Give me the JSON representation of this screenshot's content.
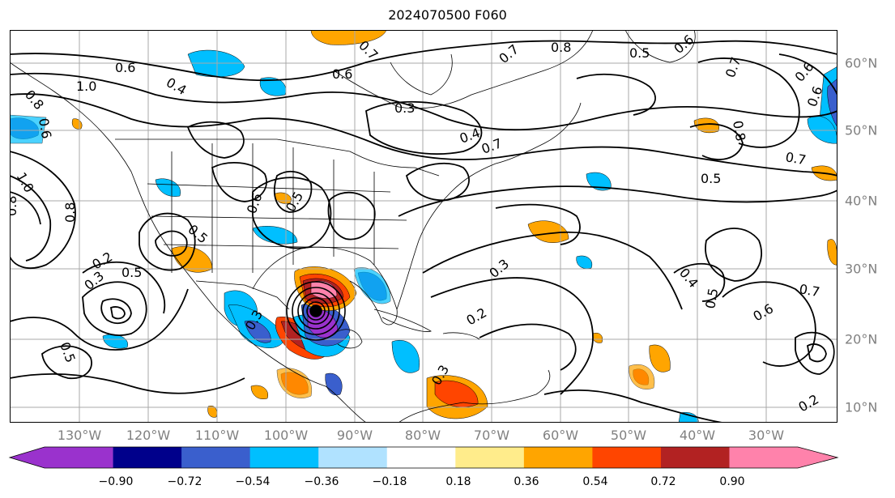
{
  "title": "2024070500 F060",
  "lon_labels": [
    "130°W",
    "120°W",
    "110°W",
    "100°W",
    "90°W",
    "80°W",
    "70°W",
    "60°W",
    "50°W",
    "40°W",
    "30°W"
  ],
  "lat_labels": [
    "60°N",
    "50°N",
    "40°N",
    "30°N",
    "20°N",
    "10°N"
  ],
  "colorbar": {
    "labels": [
      "−0.90",
      "−0.72",
      "−0.54",
      "−0.36",
      "−0.18",
      "0.18",
      "0.36",
      "0.54",
      "0.72",
      "0.90"
    ],
    "colors": [
      "#9a32cd",
      "#00008b",
      "#3a5fcd",
      "#00bfff",
      "#b0e2ff",
      "#ffffff",
      "#ffec8b",
      "#ffa500",
      "#ff4500",
      "#b22222",
      "#ff82ab"
    ]
  },
  "contour_labels": [
    {
      "text": "0.6"
    },
    {
      "text": "0.4"
    },
    {
      "text": "1.0"
    },
    {
      "text": "0.8"
    },
    {
      "text": "0.6"
    },
    {
      "text": "0.7"
    },
    {
      "text": "0.6"
    },
    {
      "text": "0.3"
    },
    {
      "text": "0.8"
    },
    {
      "text": "0.7"
    },
    {
      "text": "0.5"
    },
    {
      "text": "0.6"
    },
    {
      "text": "0.4"
    },
    {
      "text": "0.7"
    },
    {
      "text": "0.8"
    },
    {
      "text": "0.7"
    },
    {
      "text": "0.6"
    },
    {
      "text": "0.6"
    },
    {
      "text": "0.5"
    },
    {
      "text": "0.7"
    },
    {
      "text": "1.0"
    },
    {
      "text": "0.8"
    },
    {
      "text": "0.8"
    },
    {
      "text": "0.2"
    },
    {
      "text": "0.5"
    },
    {
      "text": "0.3"
    },
    {
      "text": "0.5"
    },
    {
      "text": "0.6"
    },
    {
      "text": "0.5"
    },
    {
      "text": "0.3"
    },
    {
      "text": "0.4"
    },
    {
      "text": "0.2"
    },
    {
      "text": "0.3"
    },
    {
      "text": "0.5"
    },
    {
      "text": "0.6"
    },
    {
      "text": "0.7"
    },
    {
      "text": "0.2"
    },
    {
      "text": "0.5"
    },
    {
      "text": "0.3"
    }
  ]
}
